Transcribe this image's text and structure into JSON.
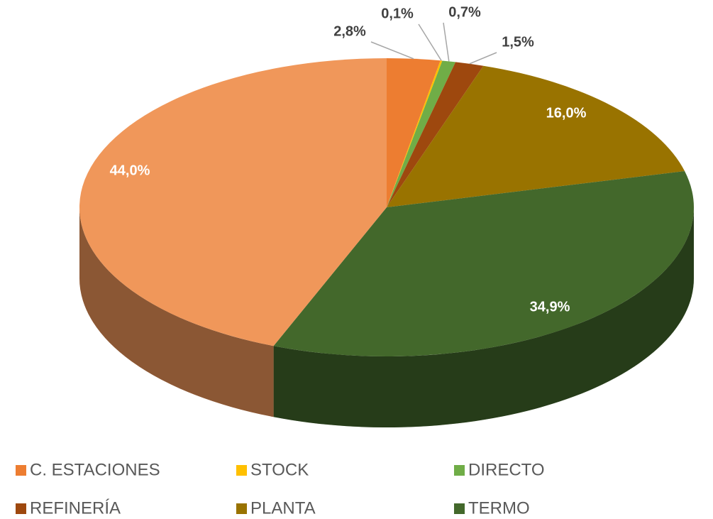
{
  "chart_data": {
    "type": "pie3d",
    "categories": [
      "C. ESTACIONES",
      "STOCK",
      "DIRECTO",
      "REFINERÍA",
      "PLANTA",
      "TERMO",
      null
    ],
    "values": [
      2.8,
      0.1,
      0.7,
      1.5,
      16.0,
      34.9,
      44.0
    ],
    "value_labels": [
      "2,8%",
      "0,1%",
      "0,7%",
      "1,5%",
      "16,0%",
      "34,9%",
      "44,0%"
    ],
    "colors": [
      "#ED7D31",
      "#FFC000",
      "#70AD47",
      "#9E480E",
      "#997300",
      "#43682B",
      "#F0975A"
    ],
    "legend": "bottom"
  }
}
